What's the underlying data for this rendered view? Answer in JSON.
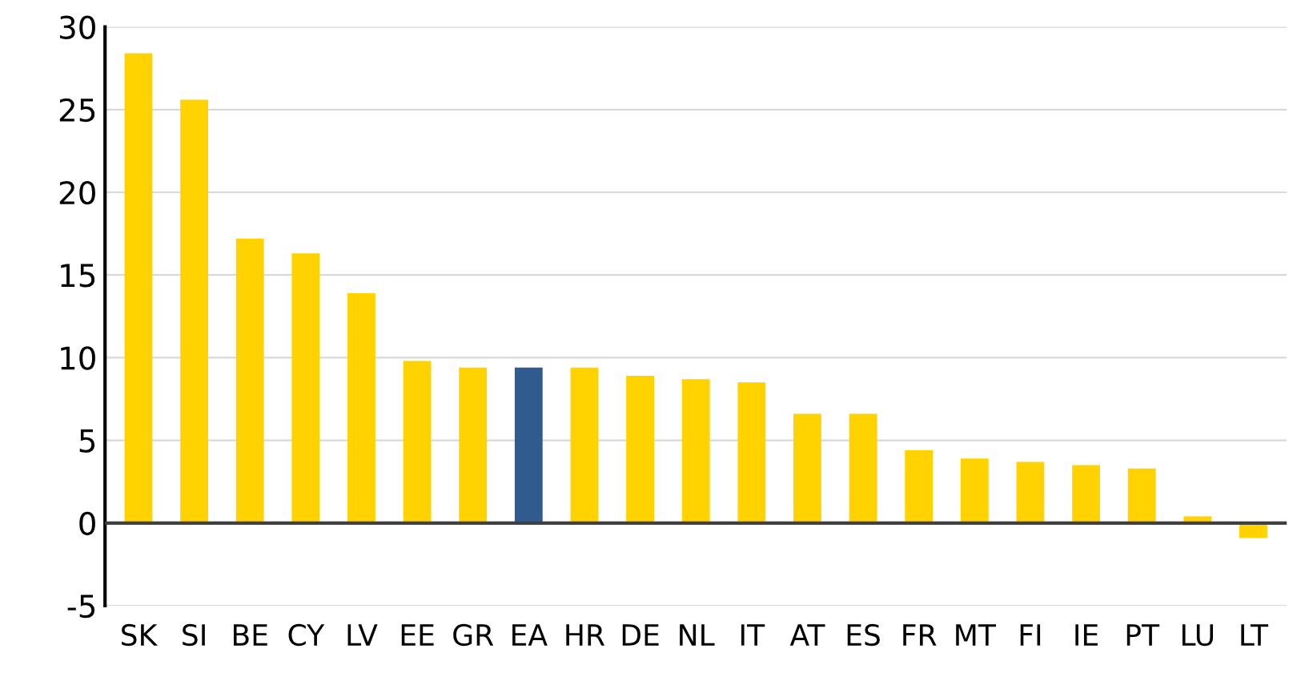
{
  "chart_data": {
    "type": "bar",
    "categories": [
      "SK",
      "SI",
      "BE",
      "CY",
      "LV",
      "EE",
      "GR",
      "EA",
      "HR",
      "DE",
      "NL",
      "IT",
      "AT",
      "ES",
      "FR",
      "MT",
      "FI",
      "IE",
      "PT",
      "LU",
      "LT"
    ],
    "values": [
      28.4,
      25.6,
      17.2,
      16.3,
      13.9,
      9.8,
      9.4,
      9.4,
      9.4,
      8.9,
      8.7,
      8.5,
      6.6,
      6.6,
      4.4,
      3.9,
      3.7,
      3.5,
      3.3,
      0.4,
      -0.9
    ],
    "colors": [
      "#ffd200",
      "#ffd200",
      "#ffd200",
      "#ffd200",
      "#ffd200",
      "#ffd200",
      "#ffd200",
      "#2f5b8f",
      "#ffd200",
      "#ffd200",
      "#ffd200",
      "#ffd200",
      "#ffd200",
      "#ffd200",
      "#ffd200",
      "#ffd200",
      "#ffd200",
      "#ffd200",
      "#ffd200",
      "#ffd200",
      "#ffd200"
    ],
    "ylim": [
      -5,
      30
    ],
    "yticks": [
      -5,
      0,
      5,
      10,
      15,
      20,
      25,
      30
    ],
    "grid": "y",
    "legend": false
  }
}
